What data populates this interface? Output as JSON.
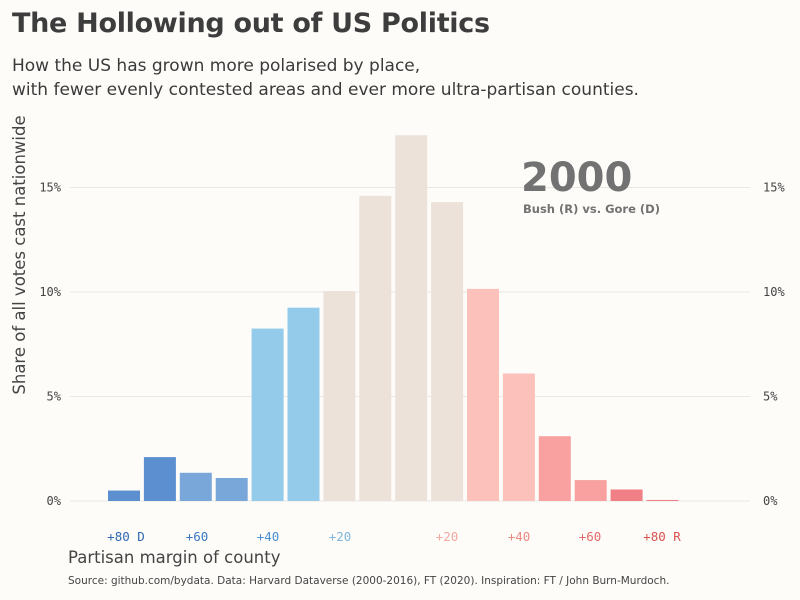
{
  "title": "The Hollowing out of US Politics",
  "subtitle": [
    "How the US has grown more polarised by place,",
    "with fewer evenly contested areas and ever more ultra-partisan counties."
  ],
  "source": "Source: github.com/bydata. Data: Harvard Dataverse (2000-2016), FT (2020). Inspiration: FT / John Burn-Murdoch.",
  "chart_data": {
    "type": "bar",
    "xlabel": "Partisan margin of county",
    "ylabel": "Share of all votes cast nationwide",
    "ylim": [
      0,
      18.5
    ],
    "y_ticks": [
      0,
      5,
      10,
      15
    ],
    "y_tick_labels": [
      "0%",
      "5%",
      "10%",
      "15%"
    ],
    "grid": true,
    "annotation": {
      "year": "2000",
      "label": "Bush (R) vs. Gore (D)"
    },
    "x_tick_labels": [
      {
        "label": "+80 D",
        "color": "#2f69b3"
      },
      {
        "label": "+60",
        "color": "#3a78c0"
      },
      {
        "label": "+40",
        "color": "#4a8fd0"
      },
      {
        "label": "+20",
        "color": "#7fb7e0"
      },
      {
        "label": "+20",
        "color": "#f2a9a2"
      },
      {
        "label": "+40",
        "color": "#ec8a84"
      },
      {
        "label": "+60",
        "color": "#e66a6a"
      },
      {
        "label": "+80 R",
        "color": "#d9534f"
      }
    ],
    "bins": [
      {
        "value": 0.5,
        "color": "#5b8fd0"
      },
      {
        "value": 2.1,
        "color": "#5b8fd0"
      },
      {
        "value": 1.35,
        "color": "#7aa7da"
      },
      {
        "value": 1.1,
        "color": "#7aa7da"
      },
      {
        "value": 8.25,
        "color": "#94cbea"
      },
      {
        "value": 9.25,
        "color": "#94cbea"
      },
      {
        "value": 10.05,
        "color": "#ede2d9"
      },
      {
        "value": 14.6,
        "color": "#ede2d9"
      },
      {
        "value": 17.5,
        "color": "#ede2d9"
      },
      {
        "value": 14.3,
        "color": "#ede2d9"
      },
      {
        "value": 10.15,
        "color": "#fcc1ba"
      },
      {
        "value": 6.1,
        "color": "#fcc1ba"
      },
      {
        "value": 3.1,
        "color": "#f8a1a0"
      },
      {
        "value": 1.0,
        "color": "#f8a1a0"
      },
      {
        "value": 0.55,
        "color": "#f08085"
      },
      {
        "value": 0.05,
        "color": "#f08085"
      }
    ]
  }
}
